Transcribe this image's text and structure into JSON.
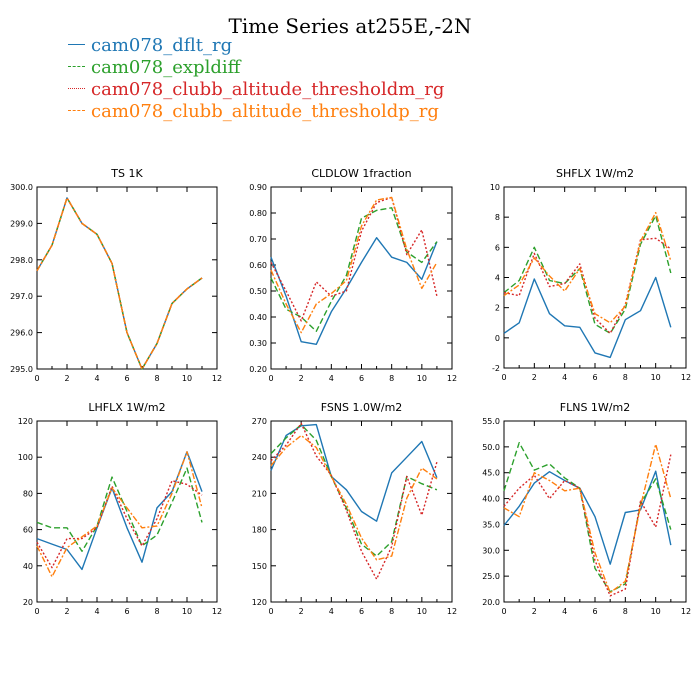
{
  "title": "Time Series at255E,-2N",
  "legend": [
    {
      "name": "cam078_dflt_rg",
      "color": "#1f77b4",
      "dash": "solid"
    },
    {
      "name": "cam078_expldiff",
      "color": "#2ca02c",
      "dash": "dashed"
    },
    {
      "name": "cam078_clubb_altitude_thresholdm_rg",
      "color": "#d62728",
      "dash": "dotted"
    },
    {
      "name": "cam078_clubb_altitude_thresholdp_rg",
      "color": "#ff7f0e",
      "dash": "dashdot"
    }
  ],
  "chart_data": [
    {
      "type": "line",
      "title": "TS   1K",
      "x": [
        0,
        1,
        2,
        3,
        4,
        5,
        6,
        7,
        8,
        9,
        10,
        11
      ],
      "xlim": [
        0,
        12
      ],
      "xticks": [
        0,
        2,
        4,
        6,
        8,
        10,
        12
      ],
      "ylim": [
        295,
        300
      ],
      "yticks": [
        295,
        296,
        297,
        298,
        299,
        300
      ],
      "ytick_labels": [
        "295.0",
        "296.0",
        "297.0",
        "298.0",
        "299.0",
        "300.0"
      ],
      "series": [
        {
          "name": "cam078_dflt_rg",
          "values": [
            297.7,
            298.4,
            299.7,
            299.0,
            298.7,
            297.9,
            296.0,
            295.0,
            295.7,
            296.8,
            297.2,
            297.5
          ]
        },
        {
          "name": "cam078_expldiff",
          "values": [
            297.7,
            298.4,
            299.7,
            299.0,
            298.7,
            297.9,
            296.0,
            295.0,
            295.7,
            296.8,
            297.2,
            297.5
          ]
        },
        {
          "name": "cam078_clubb_altitude_thresholdm_rg",
          "values": [
            297.7,
            298.4,
            299.7,
            299.0,
            298.7,
            297.9,
            296.0,
            295.0,
            295.7,
            296.8,
            297.2,
            297.5
          ]
        },
        {
          "name": "cam078_clubb_altitude_thresholdp_rg",
          "values": [
            297.7,
            298.4,
            299.7,
            299.0,
            298.7,
            297.9,
            296.0,
            295.0,
            295.7,
            296.8,
            297.2,
            297.5
          ]
        }
      ]
    },
    {
      "type": "line",
      "title": "CLDLOW   1fraction",
      "x": [
        0,
        1,
        2,
        3,
        4,
        5,
        6,
        7,
        8,
        9,
        10,
        11
      ],
      "xlim": [
        0,
        12
      ],
      "xticks": [
        0,
        2,
        4,
        6,
        8,
        10,
        12
      ],
      "ylim": [
        0.2,
        0.9
      ],
      "yticks": [
        0.2,
        0.3,
        0.4,
        0.5,
        0.6,
        0.7,
        0.8,
        0.9
      ],
      "ytick_labels": [
        "0.20",
        "0.30",
        "0.40",
        "0.50",
        "0.60",
        "0.70",
        "0.80",
        "0.90"
      ],
      "series": [
        {
          "name": "cam078_dflt_rg",
          "values": [
            0.63,
            0.48,
            0.305,
            0.295,
            0.42,
            0.51,
            0.61,
            0.705,
            0.63,
            0.61,
            0.545,
            0.69
          ]
        },
        {
          "name": "cam078_expldiff",
          "values": [
            0.55,
            0.43,
            0.4,
            0.345,
            0.46,
            0.56,
            0.78,
            0.81,
            0.82,
            0.65,
            0.61,
            0.69
          ]
        },
        {
          "name": "cam078_clubb_altitude_thresholdm_rg",
          "values": [
            0.61,
            0.5,
            0.385,
            0.535,
            0.48,
            0.5,
            0.73,
            0.84,
            0.86,
            0.64,
            0.735,
            0.48
          ]
        },
        {
          "name": "cam078_clubb_altitude_thresholdp_rg",
          "values": [
            0.58,
            0.45,
            0.34,
            0.45,
            0.49,
            0.54,
            0.75,
            0.85,
            0.86,
            0.66,
            0.51,
            0.61
          ]
        }
      ]
    },
    {
      "type": "line",
      "title": "SHFLX   1W/m2",
      "x": [
        0,
        1,
        2,
        3,
        4,
        5,
        6,
        7,
        8,
        9,
        10,
        11
      ],
      "xlim": [
        0,
        12
      ],
      "xticks": [
        0,
        2,
        4,
        6,
        8,
        10,
        12
      ],
      "ylim": [
        -2,
        10
      ],
      "yticks": [
        -2,
        0,
        2,
        4,
        6,
        8,
        10
      ],
      "ytick_labels": [
        "-2",
        "0",
        "2",
        "4",
        "6",
        "8",
        "10"
      ],
      "series": [
        {
          "name": "cam078_dflt_rg",
          "values": [
            0.3,
            1.0,
            3.9,
            1.6,
            0.8,
            0.7,
            -1.0,
            -1.3,
            1.2,
            1.8,
            4.0,
            0.7
          ]
        },
        {
          "name": "cam078_expldiff",
          "values": [
            3.0,
            3.8,
            6.0,
            3.8,
            3.6,
            4.6,
            0.9,
            0.3,
            1.9,
            6.2,
            8.1,
            4.3
          ]
        },
        {
          "name": "cam078_clubb_altitude_thresholdm_rg",
          "values": [
            3.0,
            2.8,
            5.6,
            3.4,
            3.6,
            4.9,
            1.3,
            0.3,
            2.2,
            6.5,
            6.6,
            5.9
          ]
        },
        {
          "name": "cam078_clubb_altitude_thresholdp_rg",
          "values": [
            2.8,
            3.5,
            5.3,
            4.1,
            3.1,
            4.6,
            1.6,
            1.0,
            2.1,
            6.4,
            8.3,
            5.1
          ]
        }
      ]
    },
    {
      "type": "line",
      "title": "LHFLX   1W/m2",
      "x": [
        0,
        1,
        2,
        3,
        4,
        5,
        6,
        7,
        8,
        9,
        10,
        11
      ],
      "xlim": [
        0,
        12
      ],
      "xticks": [
        0,
        2,
        4,
        6,
        8,
        10,
        12
      ],
      "ylim": [
        20,
        120
      ],
      "yticks": [
        20,
        40,
        60,
        80,
        100,
        120
      ],
      "ytick_labels": [
        "20",
        "40",
        "60",
        "80",
        "100",
        "120"
      ],
      "series": [
        {
          "name": "cam078_dflt_rg",
          "values": [
            55,
            52,
            49,
            38,
            61,
            83,
            61,
            42,
            72,
            81,
            103,
            81
          ]
        },
        {
          "name": "cam078_expldiff",
          "values": [
            64,
            61,
            61,
            48,
            62,
            89,
            70,
            51,
            57,
            75,
            94,
            64
          ]
        },
        {
          "name": "cam078_clubb_altitude_thresholdm_rg",
          "values": [
            53,
            39,
            55,
            55,
            61,
            84,
            66,
            51,
            66,
            87,
            85,
            79
          ]
        },
        {
          "name": "cam078_clubb_altitude_thresholdp_rg",
          "values": [
            51,
            34,
            50,
            56,
            62,
            83,
            72,
            61,
            62,
            80,
            103,
            72
          ]
        }
      ]
    },
    {
      "type": "line",
      "title": "FSNS   1.0W/m2",
      "x": [
        0,
        1,
        2,
        3,
        4,
        5,
        6,
        7,
        8,
        9,
        10,
        11
      ],
      "xlim": [
        0,
        12
      ],
      "xticks": [
        0,
        2,
        4,
        6,
        8,
        10,
        12
      ],
      "ylim": [
        120,
        270
      ],
      "yticks": [
        120,
        150,
        180,
        210,
        240,
        270
      ],
      "ytick_labels": [
        "120",
        "150",
        "180",
        "210",
        "240",
        "270"
      ],
      "series": [
        {
          "name": "cam078_dflt_rg",
          "values": [
            229,
            258,
            266,
            267,
            224,
            213,
            195,
            187,
            227,
            240,
            253,
            223
          ]
        },
        {
          "name": "cam078_expldiff",
          "values": [
            243,
            256,
            267,
            254,
            224,
            198,
            168,
            158,
            170,
            224,
            218,
            213
          ]
        },
        {
          "name": "cam078_clubb_altitude_thresholdm_rg",
          "values": [
            237,
            250,
            268,
            241,
            225,
            196,
            162,
            139,
            166,
            224,
            192,
            236
          ]
        },
        {
          "name": "cam078_clubb_altitude_thresholdp_rg",
          "values": [
            233,
            248,
            258,
            248,
            224,
            201,
            173,
            155,
            158,
            206,
            231,
            222
          ]
        }
      ]
    },
    {
      "type": "line",
      "title": "FLNS   1W/m2",
      "x": [
        0,
        1,
        2,
        3,
        4,
        5,
        6,
        7,
        8,
        9,
        10,
        11
      ],
      "xlim": [
        0,
        12
      ],
      "xticks": [
        0,
        2,
        4,
        6,
        8,
        10,
        12
      ],
      "ylim": [
        20,
        55
      ],
      "yticks": [
        20,
        25,
        30,
        35,
        40,
        45,
        50,
        55
      ],
      "ytick_labels": [
        "20.0",
        "25.0",
        "30.0",
        "35.0",
        "40.0",
        "45.0",
        "50.0",
        "55.0"
      ],
      "series": [
        {
          "name": "cam078_dflt_rg",
          "values": [
            34.8,
            38.5,
            43.0,
            45.2,
            43.5,
            42.0,
            36.5,
            27.3,
            37.3,
            37.8,
            45.3,
            31.0
          ]
        },
        {
          "name": "cam078_expldiff",
          "values": [
            41.5,
            50.8,
            45.5,
            46.7,
            44.0,
            42.0,
            26.5,
            22.0,
            23.5,
            39.0,
            43.8,
            34.0
          ]
        },
        {
          "name": "cam078_clubb_altitude_thresholdm_rg",
          "values": [
            38.5,
            42.0,
            44.5,
            40.0,
            43.5,
            42.0,
            28.0,
            21.2,
            22.5,
            39.5,
            34.5,
            48.5
          ]
        },
        {
          "name": "cam078_clubb_altitude_thresholdp_rg",
          "values": [
            38.2,
            36.5,
            45.0,
            43.5,
            41.5,
            42.0,
            29.5,
            21.8,
            24.0,
            38.5,
            50.5,
            40.0
          ]
        }
      ]
    }
  ]
}
